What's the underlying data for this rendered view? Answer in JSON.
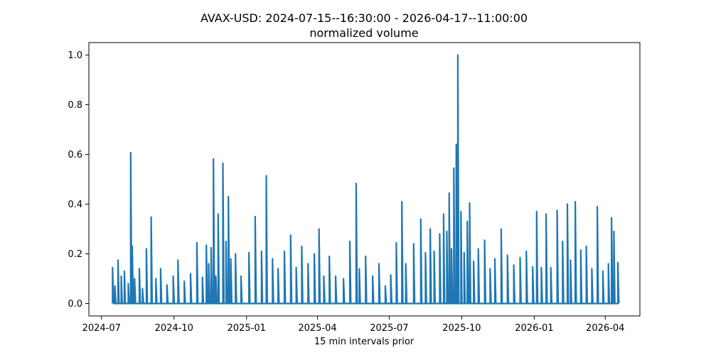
{
  "chart_data": {
    "type": "line",
    "title": "AVAX-USD: 2024-07-15--16:30:00 - 2026-04-17--11:00:00",
    "subtitle": "normalized volume",
    "xlabel": "15 min intervals prior",
    "ylabel": "",
    "x_range": [
      "2024-07-15",
      "2026-04-17"
    ],
    "xlim": [
      "2024-06-15",
      "2026-05-15"
    ],
    "ylim": [
      -0.05,
      1.05
    ],
    "x_ticks": [
      {
        "date": "2024-07-01",
        "label": "2024-07"
      },
      {
        "date": "2024-10-01",
        "label": "2024-10"
      },
      {
        "date": "2025-01-01",
        "label": "2025-01"
      },
      {
        "date": "2025-04-01",
        "label": "2025-04"
      },
      {
        "date": "2025-07-01",
        "label": "2025-07"
      },
      {
        "date": "2025-10-01",
        "label": "2025-10"
      },
      {
        "date": "2026-01-01",
        "label": "2026-01"
      },
      {
        "date": "2026-04-01",
        "label": "2026-04"
      }
    ],
    "y_ticks": [
      {
        "value": 0.0,
        "label": "0.0"
      },
      {
        "value": 0.2,
        "label": "0.2"
      },
      {
        "value": 0.4,
        "label": "0.4"
      },
      {
        "value": 0.6,
        "label": "0.6"
      },
      {
        "value": 0.8,
        "label": "0.8"
      },
      {
        "value": 1.0,
        "label": "1.0"
      }
    ],
    "grid": false,
    "line_color": "#1f77b4",
    "series": [
      {
        "x": [
          "2024-07-15",
          "2024-07-18",
          "2024-07-22",
          "2024-07-26",
          "2024-07-30",
          "2024-08-04",
          "2024-08-07",
          "2024-08-09",
          "2024-08-12",
          "2024-08-18",
          "2024-08-22",
          "2024-08-27",
          "2024-09-02",
          "2024-09-08",
          "2024-09-14",
          "2024-09-22",
          "2024-09-30",
          "2024-10-06",
          "2024-10-14",
          "2024-10-22",
          "2024-10-30",
          "2024-11-06",
          "2024-11-11",
          "2024-11-14",
          "2024-11-17",
          "2024-11-20",
          "2024-11-23",
          "2024-11-26",
          "2024-12-02",
          "2024-12-06",
          "2024-12-09",
          "2024-12-12",
          "2024-12-18",
          "2024-12-25",
          "2025-01-04",
          "2025-01-12",
          "2025-01-20",
          "2025-01-26",
          "2025-02-03",
          "2025-02-10",
          "2025-02-18",
          "2025-02-26",
          "2025-03-05",
          "2025-03-12",
          "2025-03-20",
          "2025-03-28",
          "2025-04-03",
          "2025-04-09",
          "2025-04-16",
          "2025-04-24",
          "2025-05-04",
          "2025-05-12",
          "2025-05-20",
          "2025-05-24",
          "2025-06-01",
          "2025-06-10",
          "2025-06-18",
          "2025-06-26",
          "2025-07-03",
          "2025-07-10",
          "2025-07-17",
          "2025-07-22",
          "2025-08-01",
          "2025-08-10",
          "2025-08-16",
          "2025-08-22",
          "2025-08-27",
          "2025-09-03",
          "2025-09-08",
          "2025-09-12",
          "2025-09-15",
          "2025-09-18",
          "2025-09-21",
          "2025-09-24",
          "2025-09-26",
          "2025-09-30",
          "2025-10-04",
          "2025-10-08",
          "2025-10-11",
          "2025-10-16",
          "2025-10-22",
          "2025-10-30",
          "2025-11-06",
          "2025-11-12",
          "2025-11-20",
          "2025-11-28",
          "2025-12-06",
          "2025-12-14",
          "2025-12-22",
          "2025-12-30",
          "2026-01-04",
          "2026-01-10",
          "2026-01-16",
          "2026-01-22",
          "2026-01-30",
          "2026-02-06",
          "2026-02-12",
          "2026-02-16",
          "2026-02-22",
          "2026-03-01",
          "2026-03-08",
          "2026-03-15",
          "2026-03-22",
          "2026-03-29",
          "2026-04-05",
          "2026-04-09",
          "2026-04-12",
          "2026-04-17"
        ],
        "y": [
          0.145,
          0.07,
          0.175,
          0.11,
          0.13,
          0.08,
          0.607,
          0.23,
          0.1,
          0.14,
          0.06,
          0.22,
          0.348,
          0.1,
          0.14,
          0.075,
          0.11,
          0.175,
          0.09,
          0.12,
          0.245,
          0.105,
          0.235,
          0.16,
          0.225,
          0.582,
          0.11,
          0.36,
          0.565,
          0.25,
          0.43,
          0.18,
          0.2,
          0.11,
          0.205,
          0.35,
          0.21,
          0.514,
          0.18,
          0.14,
          0.21,
          0.275,
          0.145,
          0.23,
          0.16,
          0.2,
          0.3,
          0.11,
          0.19,
          0.11,
          0.1,
          0.25,
          0.483,
          0.14,
          0.19,
          0.11,
          0.16,
          0.07,
          0.115,
          0.245,
          0.41,
          0.16,
          0.24,
          0.34,
          0.205,
          0.3,
          0.21,
          0.28,
          0.36,
          0.29,
          0.445,
          0.22,
          0.545,
          0.64,
          1.0,
          0.37,
          0.205,
          0.33,
          0.405,
          0.17,
          0.22,
          0.255,
          0.14,
          0.18,
          0.3,
          0.195,
          0.155,
          0.185,
          0.21,
          0.148,
          0.37,
          0.145,
          0.36,
          0.145,
          0.375,
          0.25,
          0.4,
          0.175,
          0.41,
          0.215,
          0.23,
          0.14,
          0.39,
          0.13,
          0.16,
          0.345,
          0.29,
          0.165
        ]
      }
    ]
  }
}
